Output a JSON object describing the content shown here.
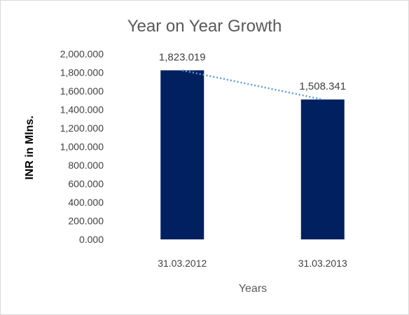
{
  "chart_data": {
    "type": "bar",
    "title": "Year on Year Growth",
    "xlabel": "Years",
    "ylabel": "INR in Mlns.",
    "categories": [
      "31.03.2012",
      "31.03.2013"
    ],
    "values": [
      1823.019,
      1508.341
    ],
    "data_labels": [
      "1,823.019",
      "1,508.341"
    ],
    "ylim": [
      0,
      2000
    ],
    "yticks": [
      {
        "value": 0,
        "label": "0.000"
      },
      {
        "value": 200,
        "label": "200.000"
      },
      {
        "value": 400,
        "label": "400.000"
      },
      {
        "value": 600,
        "label": "600.000"
      },
      {
        "value": 800,
        "label": "800.000"
      },
      {
        "value": 1000,
        "label": "1,000.000"
      },
      {
        "value": 1200,
        "label": "1,200.000"
      },
      {
        "value": 1400,
        "label": "1,400.000"
      },
      {
        "value": 1600,
        "label": "1,600.000"
      },
      {
        "value": 1800,
        "label": "1,800.000"
      },
      {
        "value": 2000,
        "label": "2,000.000"
      }
    ],
    "grid": false,
    "legend": "none",
    "trendline": "linear",
    "colors": {
      "bar": "#002060",
      "trendline": "#5b9bd5"
    }
  }
}
